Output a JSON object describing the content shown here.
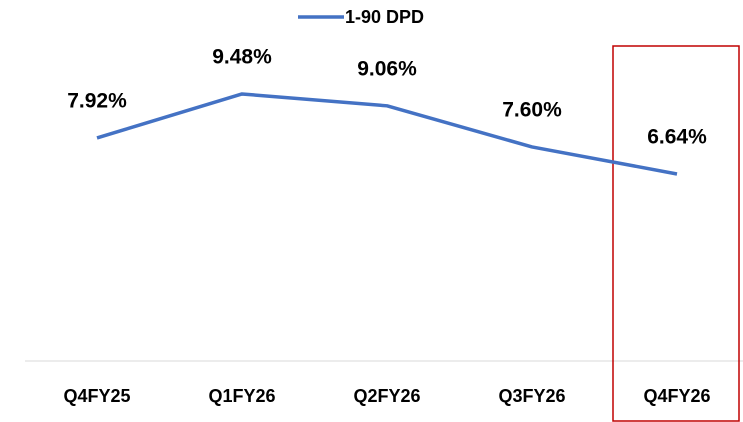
{
  "chart_data": {
    "type": "line",
    "categories": [
      "Q4FY25",
      "Q1FY26",
      "Q2FY26",
      "Q3FY26",
      "Q4FY26"
    ],
    "series": [
      {
        "name": "1-90 DPD",
        "color": "#4472c4",
        "values": [
          7.92,
          9.48,
          9.06,
          7.6,
          6.64
        ],
        "value_labels": [
          "7.92%",
          "9.48%",
          "9.06%",
          "7.60%",
          "6.64%"
        ]
      }
    ],
    "ylim": [
      0,
      12
    ],
    "legend": "top"
  }
}
